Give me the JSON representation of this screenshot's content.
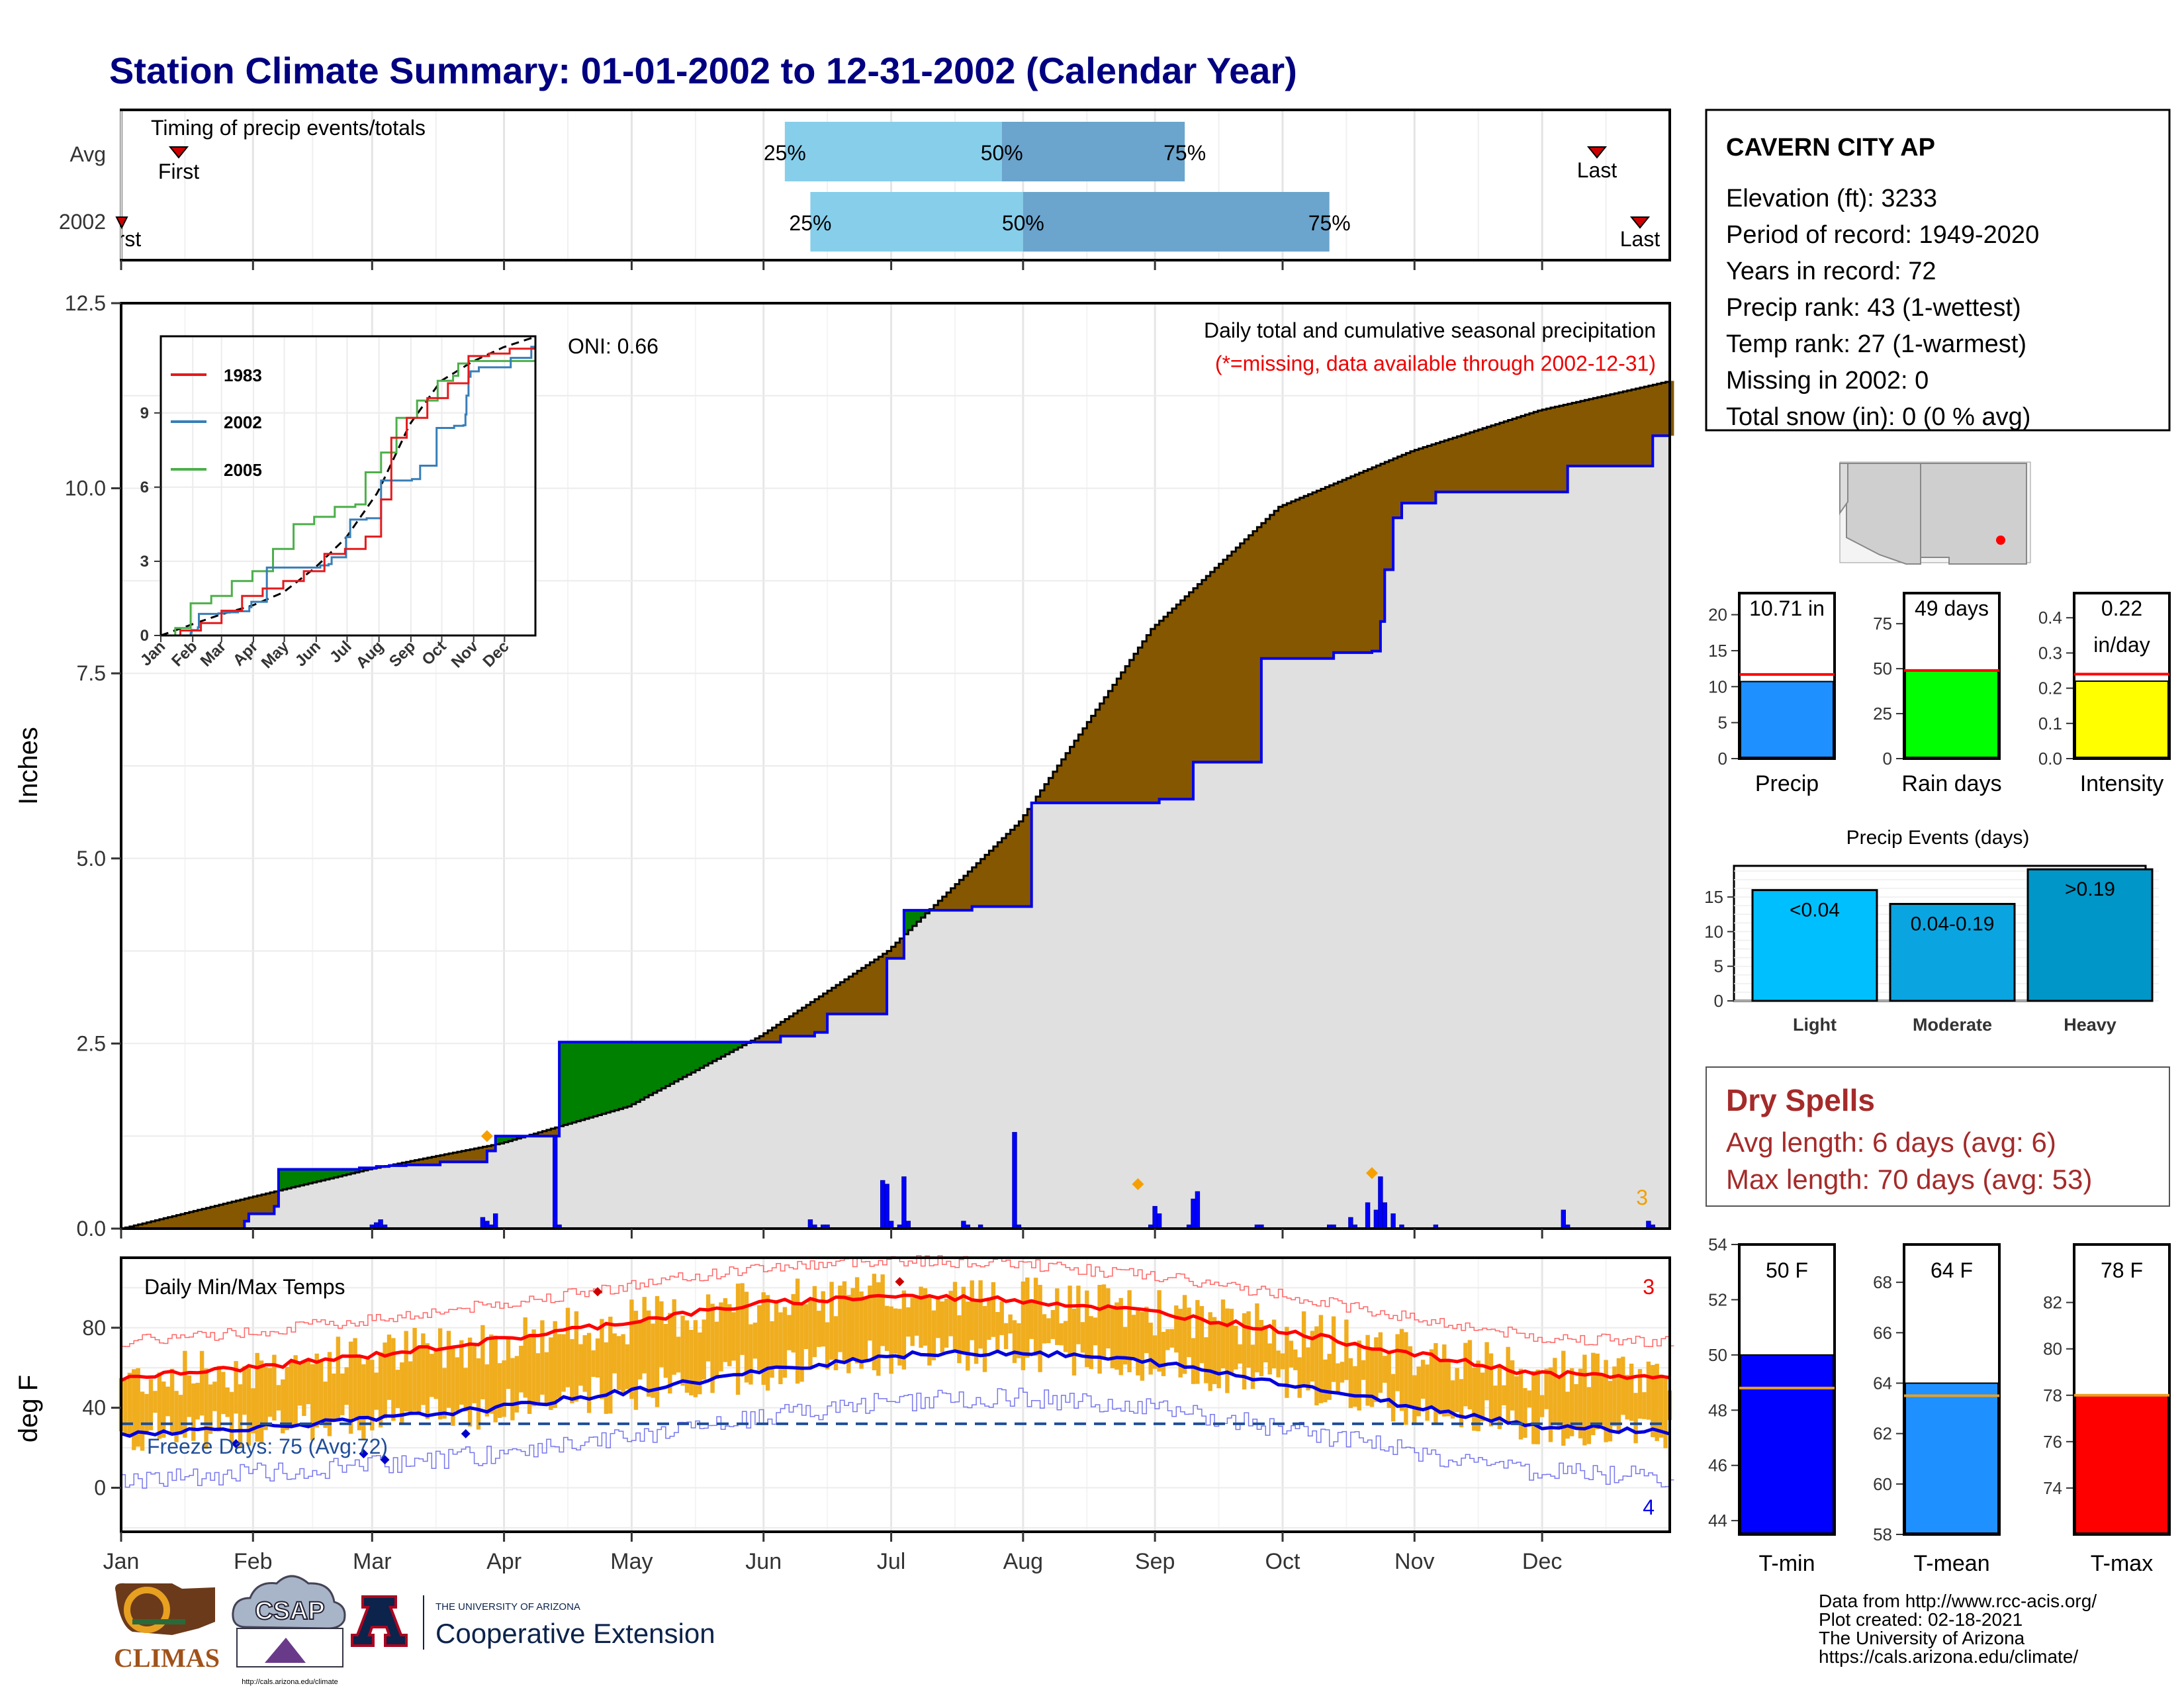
{
  "title": "Station Climate Summary: 01-01-2002 to 12-31-2002 (Calendar Year)",
  "colors": {
    "title": "#000080",
    "cum_avg_fill": "#e0e0e0",
    "above_fill": "#008000",
    "below_fill": "#855700",
    "obs_line": "#0000ee",
    "q_light": "#87ceeb",
    "q_dark": "#6ba4cc",
    "precip_bar": "#1e90ff",
    "raindays_bar": "#00ff00",
    "intensity_bar": "#ffff00",
    "light_bar": "#00bfff",
    "moderate_bar": "#0aa5e0",
    "heavy_bar": "#0096c8",
    "tmin_bar": "#0000ff",
    "tmean_bar": "#1e90ff",
    "tmax_bar": "#ff0000",
    "temp_bars": "#f0ad1e",
    "tmax_line": "#ff0000",
    "tmin_line": "#0000dd",
    "dry_text": "#a52a2a"
  },
  "month_labels": [
    "Jan",
    "Feb",
    "Mar",
    "Apr",
    "May",
    "Jun",
    "Jul",
    "Aug",
    "Sep",
    "Oct",
    "Nov",
    "Dec"
  ],
  "timing": {
    "label": "Timing of precip events/totals",
    "rows": [
      "Avg",
      "2002"
    ],
    "avg": {
      "first_label": "First",
      "last_label": "Last",
      "first_day": 13,
      "last_day": 365,
      "q25": 157,
      "q50": 208,
      "q75": 251,
      "q25_label": "25%",
      "q50_label": "50%",
      "q75_label": "75%"
    },
    "y2002": {
      "first_label": "First",
      "last_label": "Last",
      "first_day": 1,
      "last_day": 363,
      "q25": 163,
      "q50": 213,
      "q75": 285,
      "q25_label": "25%",
      "q50_label": "50%",
      "q75_label": "75%"
    }
  },
  "chart_data": [
    {
      "type": "area",
      "title": "Daily total and cumulative seasonal precipitation",
      "subtitle": "(*=missing, data available through 2002-12-31)",
      "ylabel": "Inches",
      "ylim": [
        0,
        12.5
      ],
      "yticks": [
        "0.0",
        "2.5",
        "5.0",
        "7.5",
        "10.0",
        "12.5"
      ],
      "oni_label": "ONI: 0.66",
      "corner_count": "3",
      "avg_cumulative_points": {
        "day": [
          1,
          31,
          59,
          90,
          120,
          151,
          181,
          212,
          243,
          273,
          304,
          334,
          365
        ],
        "inches": [
          0.0,
          0.42,
          0.8,
          1.15,
          1.65,
          2.6,
          3.75,
          5.5,
          8.1,
          9.75,
          10.5,
          11.05,
          11.45
        ]
      },
      "obs_2002_steps": {
        "day": [
          1,
          30,
          31,
          37,
          38,
          56,
          57,
          60,
          61,
          63,
          64,
          67,
          68,
          75,
          76,
          86,
          87,
          88,
          89,
          103,
          104,
          155,
          156,
          163,
          164,
          166,
          167,
          180,
          181,
          184,
          185,
          200,
          201,
          211,
          215,
          244,
          245,
          252,
          253,
          268,
          269,
          285,
          286,
          294,
          295,
          296,
          297,
          298,
          300,
          302,
          310,
          340,
          341,
          360,
          361,
          365
        ],
        "inches": [
          0.0,
          0.1,
          0.2,
          0.3,
          0.8,
          0.8,
          0.82,
          0.82,
          0.84,
          0.84,
          0.85,
          0.85,
          0.86,
          0.86,
          0.9,
          0.9,
          1.05,
          1.05,
          1.25,
          1.25,
          2.52,
          2.52,
          2.6,
          2.6,
          2.65,
          2.65,
          2.9,
          2.9,
          3.65,
          3.65,
          4.3,
          4.3,
          4.35,
          4.35,
          5.75,
          5.75,
          5.8,
          5.8,
          6.3,
          6.3,
          7.7,
          7.7,
          7.78,
          7.78,
          7.8,
          7.8,
          8.2,
          8.9,
          9.6,
          9.8,
          9.95,
          9.95,
          10.3,
          10.3,
          10.71,
          10.71
        ]
      },
      "daily_bars": {
        "day": [
          60,
          61,
          62,
          63,
          86,
          87,
          88,
          89,
          103,
          104,
          163,
          164,
          166,
          167,
          180,
          181,
          182,
          184,
          185,
          186,
          199,
          200,
          203,
          211,
          212,
          243,
          244,
          245,
          252,
          253,
          254,
          268,
          269,
          285,
          286,
          290,
          291,
          294,
          296,
          297,
          298,
          300,
          302,
          310,
          340,
          341,
          360,
          361
        ],
        "inches": [
          0.05,
          0.08,
          0.12,
          0.05,
          0.15,
          0.1,
          0.05,
          0.2,
          1.25,
          0.05,
          0.12,
          0.05,
          0.05,
          0.05,
          0.65,
          0.6,
          0.1,
          0.05,
          0.7,
          0.1,
          0.1,
          0.05,
          0.05,
          1.3,
          0.05,
          0.05,
          0.3,
          0.2,
          0.05,
          0.4,
          0.5,
          0.05,
          0.05,
          0.05,
          0.05,
          0.15,
          0.05,
          0.35,
          0.25,
          0.7,
          0.35,
          0.2,
          0.05,
          0.05,
          0.25,
          0.05,
          0.1,
          0.05
        ]
      },
      "max_markers": [
        {
          "day": 87,
          "inches": 1.25
        },
        {
          "day": 240,
          "inches": 0.6
        },
        {
          "day": 295,
          "inches": 0.75
        }
      ]
    },
    {
      "type": "line",
      "title": "",
      "series": [
        {
          "name": "1983"
        },
        {
          "name": "2002"
        },
        {
          "name": "2005"
        }
      ],
      "x_tick_labels": [
        "Jan",
        "Feb",
        "Mar",
        "Apr",
        "May",
        "Jun",
        "Jul",
        "Aug",
        "Sep",
        "Oct",
        "Nov",
        "Dec"
      ],
      "yticks": [
        "0",
        "3",
        "6",
        "9"
      ],
      "ylim": [
        0,
        12.1
      ]
    },
    {
      "type": "line",
      "title": "Daily Min/Max Temps",
      "ylabel": "deg F",
      "ylim": [
        -22,
        115
      ],
      "yticks": [
        "0",
        "40",
        "80"
      ],
      "freeze_label": "Freeze Days: 75 (Avg:72)",
      "freeze_level": 32,
      "max_count": "3",
      "min_count": "4",
      "avg_max": {
        "day": [
          1,
          31,
          59,
          90,
          120,
          151,
          181,
          212,
          243,
          273,
          304,
          334,
          365
        ],
        "value": [
          55,
          60,
          66,
          74,
          83,
          92,
          96,
          94,
          88,
          79,
          67,
          57,
          55
        ]
      },
      "avg_min": {
        "day": [
          1,
          31,
          59,
          90,
          120,
          151,
          181,
          212,
          243,
          273,
          304,
          334,
          365
        ],
        "value": [
          27,
          30,
          34,
          40,
          48,
          58,
          66,
          68,
          63,
          53,
          41,
          31,
          28
        ]
      }
    },
    {
      "type": "bar",
      "title": "",
      "categories": [
        "Precip",
        "Rain days",
        "Intensity"
      ],
      "values": [
        10.71,
        49,
        0.22
      ],
      "value_labels": [
        "10.71 in",
        "49 days",
        "0.22"
      ],
      "unit_labels": [
        "",
        "",
        "in/day"
      ],
      "averages": [
        11.7,
        49,
        0.24
      ],
      "yticks": [
        [
          "0",
          "5",
          "10",
          "15",
          "20"
        ],
        [
          "0",
          "25",
          "50",
          "75"
        ],
        [
          "0.0",
          "0.1",
          "0.2",
          "0.3",
          "0.4"
        ]
      ],
      "ymax": [
        23,
        92,
        0.47
      ]
    },
    {
      "type": "bar",
      "title": "Precip Events (days)",
      "categories": [
        "Light",
        "Moderate",
        "Heavy"
      ],
      "values": [
        16,
        14,
        19
      ],
      "value_labels": [
        "<0.04",
        "0.04-0.19",
        ">0.19"
      ],
      "yticks": [
        "0",
        "5",
        "10",
        "15"
      ],
      "ymax": [
        19.5
      ]
    },
    {
      "type": "bar",
      "title": "",
      "categories": [
        "T-min",
        "T-mean",
        "T-max"
      ],
      "values": [
        50,
        64,
        78
      ],
      "value_labels": [
        "50 F",
        "64 F",
        "78 F"
      ],
      "averages": [
        48.8,
        63.5,
        78
      ],
      "yticks": [
        [
          "44",
          "46",
          "48",
          "50",
          "52",
          "54"
        ],
        [
          "58",
          "60",
          "62",
          "64",
          "66",
          "68"
        ],
        [
          "74",
          "76",
          "78",
          "80",
          "82"
        ]
      ],
      "yrange": [
        [
          43.5,
          54
        ],
        [
          58,
          69.5
        ],
        [
          72,
          84.5
        ]
      ]
    }
  ],
  "station": {
    "name": "CAVERN CITY AP",
    "lines": [
      "Elevation (ft): 3233",
      "Period of record: 1949-2020",
      "Years in record: 72",
      "Precip rank: 43 (1-wettest)",
      "Temp rank: 27 (1-warmest)",
      "Missing in 2002: 0",
      "Total snow (in): 0 (0 % avg)"
    ]
  },
  "dry_spells": {
    "title": "Dry Spells",
    "avg": "Avg length: 6 days (avg: 6)",
    "max": "Max length: 70 days (avg: 53)"
  },
  "footer": {
    "lines": [
      "Data from http://www.rcc-acis.org/",
      "Plot created: 02-18-2021",
      "The University of Arizona",
      "https://cals.arizona.edu/climate/"
    ],
    "climas": "CLIMAS",
    "csap": "CSAP",
    "csap_url": "http://cals.arizona.edu/climate",
    "ua_small": "THE UNIVERSITY OF ARIZONA",
    "ua_big": "Cooperative Extension"
  }
}
